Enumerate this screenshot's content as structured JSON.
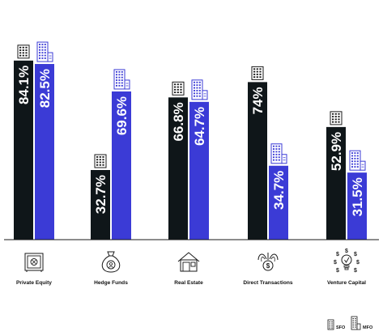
{
  "chart_data": {
    "type": "bar",
    "categories": [
      "Private Equity",
      "Hedge Funds",
      "Real Estate",
      "Direct Transactions",
      "Venture Capital"
    ],
    "category_icons": [
      "safe-icon",
      "money-bag-icon",
      "house-icon",
      "dollar-fountain-icon",
      "lightbulb-dollar-icon"
    ],
    "series": [
      {
        "name": "SFO",
        "color": "#0f1619",
        "icon": "small-building-icon",
        "values": [
          84.1,
          32.7,
          66.8,
          74,
          52.9
        ],
        "labels": [
          "84.1%",
          "32.7%",
          "66.8%",
          "74%",
          "52.9%"
        ]
      },
      {
        "name": "MFO",
        "color": "#3b3bd6",
        "icon": "large-building-icon",
        "values": [
          82.5,
          69.6,
          64.7,
          34.7,
          31.5
        ],
        "labels": [
          "82.5%",
          "69.6%",
          "64.7%",
          "34.7%",
          "31.5%"
        ]
      }
    ],
    "ylim": [
      0,
      100
    ],
    "grid": false,
    "legend_position": "bottom-right",
    "title": "",
    "xlabel": "",
    "ylabel": ""
  }
}
